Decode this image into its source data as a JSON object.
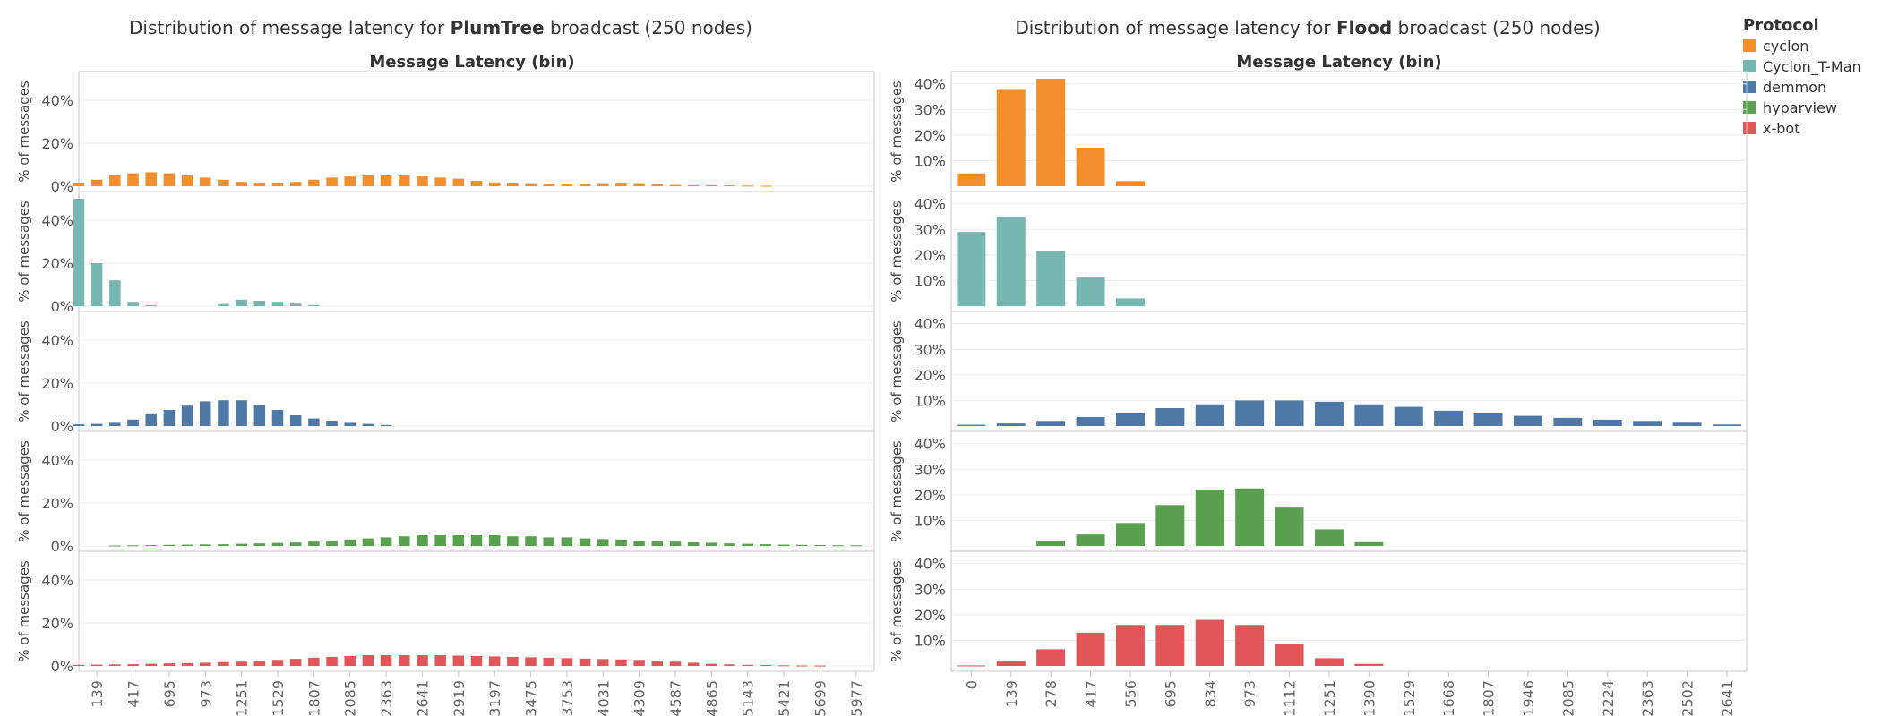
{
  "colors": {
    "cyclon": "#f28e2b",
    "Cyclon_T-Man": "#76b7b2",
    "demmon": "#4e79a7",
    "hyparview": "#59a14f",
    "x-bot": "#e15759"
  },
  "legend": {
    "title": "Protocol",
    "items": [
      "cyclon",
      "Cyclon_T-Man",
      "demmon",
      "hyparview",
      "x-bot"
    ]
  },
  "chart_data": [
    {
      "type": "bar",
      "title_pre": "Distribution of message latency for ",
      "title_bold": "PlumTree",
      "title_post": " broadcast (250 nodes)",
      "xlabel": "Message Latency (bin)",
      "ylabel": "% of messages",
      "ylim": [
        0,
        50
      ],
      "y_ticks": [
        0,
        20,
        40
      ],
      "y_tick_labels": [
        "0%",
        "20%",
        "40%"
      ],
      "x_start": 0,
      "bin_width": 139,
      "x_ticks": [
        139,
        417,
        695,
        973,
        1251,
        1529,
        1807,
        2085,
        2363,
        2641,
        2919,
        3197,
        3475,
        3753,
        4031,
        4309,
        4587,
        4865,
        5143,
        5421,
        5699,
        5977
      ],
      "x_tick_labels": [
        "139",
        "417",
        "695",
        "973",
        "1251",
        "1529",
        "1807",
        "2085",
        "2363",
        "2641",
        "2919",
        "3197",
        "3475",
        "3753",
        "4031",
        "4309",
        "4587",
        "4865",
        "5143",
        "5421",
        "5699",
        "5977"
      ],
      "series": [
        {
          "name": "cyclon",
          "values": [
            1.5,
            3,
            5,
            6,
            6.5,
            6,
            5,
            4,
            3,
            2,
            1.7,
            1.5,
            2,
            3,
            4,
            4.5,
            5,
            5,
            5,
            4.5,
            4,
            3.5,
            2.5,
            1.8,
            1.3,
            1,
            0.8,
            0.8,
            0.8,
            1,
            1.2,
            1,
            0.8,
            0.6,
            0.5,
            0.5,
            0.4,
            0.3,
            0.2
          ]
        },
        {
          "name": "Cyclon_T-Man",
          "values": [
            50,
            20,
            12,
            2,
            0.5,
            0,
            0,
            0,
            1,
            3,
            2.5,
            2,
            1.2,
            0.5
          ]
        },
        {
          "name": "demmon",
          "values": [
            0.8,
            1,
            1.5,
            3,
            5.5,
            7.5,
            9.5,
            11.5,
            12,
            12,
            10,
            7.5,
            5,
            3.5,
            2.5,
            1.5,
            1,
            0.5
          ]
        },
        {
          "name": "hyparview",
          "values": [
            0,
            0,
            0.2,
            0.3,
            0.4,
            0.5,
            0.6,
            0.7,
            0.8,
            1,
            1.2,
            1.4,
            1.6,
            2,
            2.5,
            3,
            3.5,
            4,
            4.5,
            5,
            5,
            5,
            5,
            5,
            4.5,
            4.5,
            4,
            4,
            3.5,
            3.2,
            3,
            2.5,
            2.2,
            2,
            1.7,
            1.5,
            1.2,
            1,
            0.8,
            0.6,
            0.5,
            0.4,
            0.3,
            0.3
          ]
        },
        {
          "name": "x-bot",
          "values": [
            0.5,
            0.6,
            0.7,
            0.8,
            1,
            1.2,
            1.3,
            1.5,
            1.8,
            2,
            2.3,
            2.8,
            3.3,
            3.8,
            4.2,
            4.6,
            5,
            5,
            5,
            5,
            5,
            4.8,
            4.6,
            4.4,
            4.2,
            4,
            3.8,
            3.6,
            3.4,
            3.2,
            3,
            2.8,
            2.5,
            2,
            1.5,
            1,
            0.7,
            0.5,
            0.4,
            0.3,
            0.2,
            0.2
          ]
        }
      ]
    },
    {
      "type": "bar",
      "title_pre": "Distribution of message latency for ",
      "title_bold": "Flood",
      "title_post": " broadcast (250 nodes)",
      "xlabel": "Message Latency (bin)",
      "ylabel": "% of messages",
      "ylim": [
        0,
        42
      ],
      "y_ticks": [
        10,
        20,
        30,
        40
      ],
      "y_tick_labels": [
        "10%",
        "20%",
        "30%",
        "40%"
      ],
      "x_start": 0,
      "bin_width": 139,
      "x_ticks": [
        0,
        139,
        278,
        417,
        556,
        695,
        834,
        973,
        1112,
        1251,
        1390,
        1529,
        1668,
        1807,
        1946,
        2085,
        2224,
        2363,
        2502,
        2641
      ],
      "x_tick_labels": [
        "0",
        "139",
        "278",
        "417",
        "556",
        "695",
        "834",
        "973",
        "1112",
        "1251",
        "1390",
        "1529",
        "1668",
        "1807",
        "1946",
        "2085",
        "2224",
        "2363",
        "2502",
        "2641"
      ],
      "series": [
        {
          "name": "cyclon",
          "values": [
            5,
            38,
            42,
            15,
            2
          ]
        },
        {
          "name": "Cyclon_T-Man",
          "values": [
            29,
            35,
            21.5,
            11.5,
            3
          ]
        },
        {
          "name": "demmon",
          "values": [
            0.5,
            1,
            2,
            3.5,
            5,
            7,
            8.5,
            10,
            10,
            9.5,
            8.5,
            7.5,
            6,
            5,
            4,
            3.2,
            2.5,
            2,
            1.3,
            0.6
          ]
        },
        {
          "name": "hyparview",
          "values": [
            0,
            0,
            2,
            4.5,
            9,
            16,
            22,
            22.5,
            15,
            6.5,
            1.5
          ]
        },
        {
          "name": "x-bot",
          "values": [
            0.2,
            2,
            6.5,
            13,
            16,
            16,
            18,
            16,
            8.5,
            3,
            0.8
          ]
        }
      ]
    }
  ]
}
